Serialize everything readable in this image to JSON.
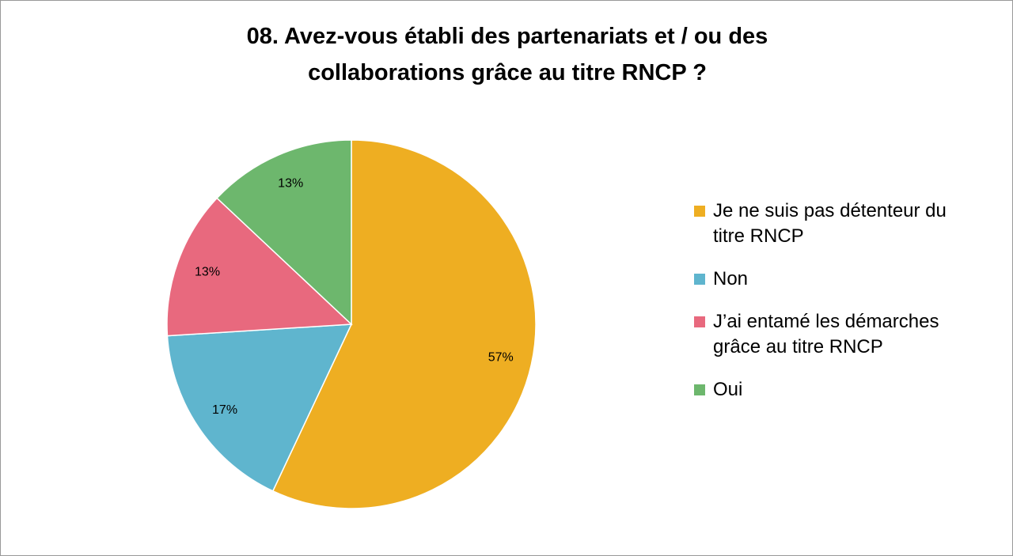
{
  "chart_data": {
    "type": "pie",
    "title": "08. Avez-vous établi des partenariats et / ou des collaborations grâce au titre RNCP ?",
    "categories": [
      "Je ne suis pas détenteur du titre RNCP",
      "Non",
      "J’ai entamé les démarches grâce au titre RNCP",
      "Oui"
    ],
    "values": [
      57,
      17,
      13,
      13
    ],
    "value_labels": [
      "57%",
      "17%",
      "13%",
      "13%"
    ],
    "colors": [
      "#EEAE22",
      "#5FB5CE",
      "#E8697E",
      "#6DB76D"
    ],
    "legend": "right"
  }
}
